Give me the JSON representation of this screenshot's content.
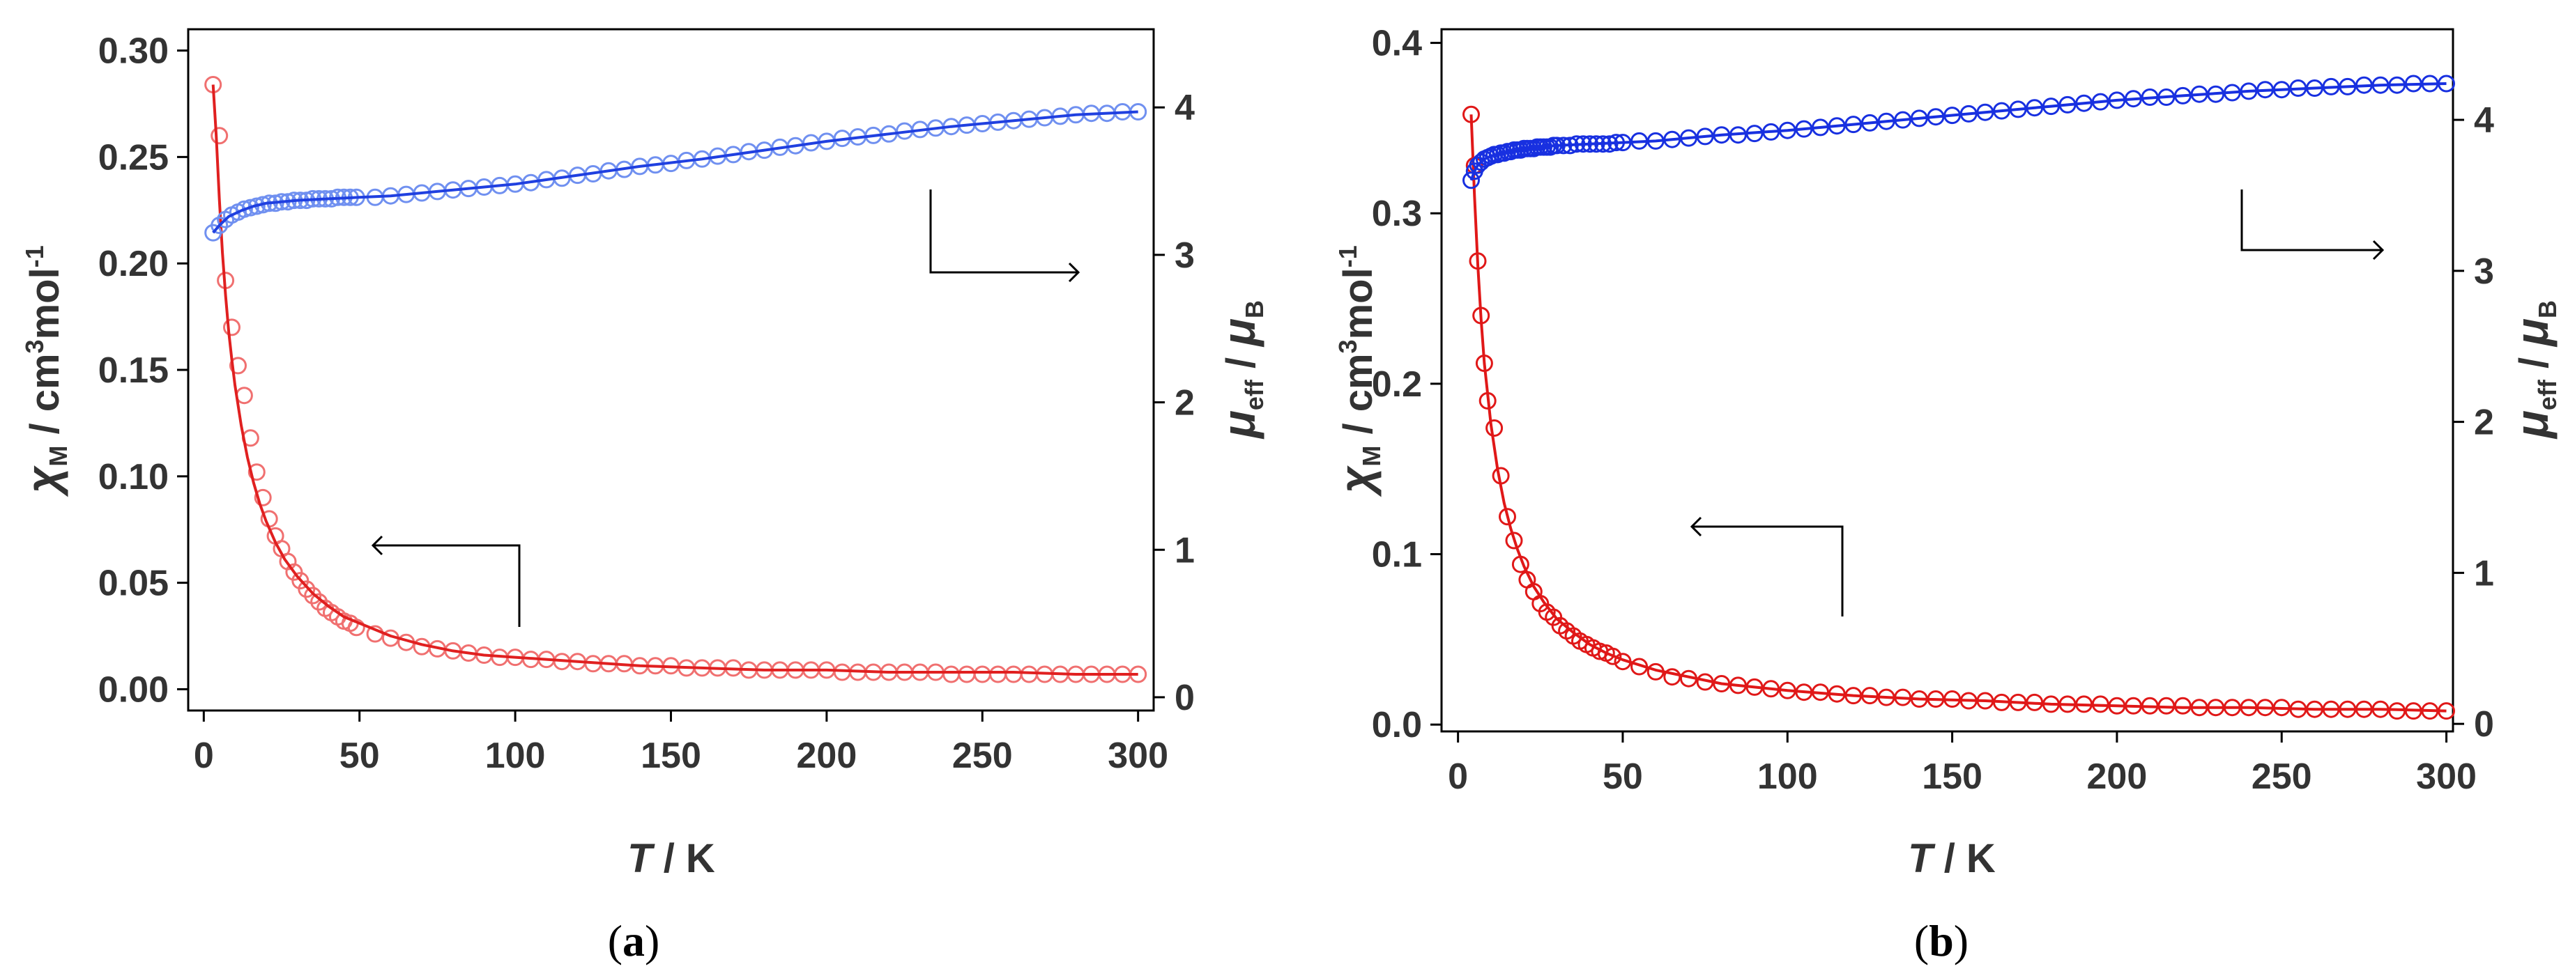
{
  "chart_data": [
    {
      "type": "scatter",
      "panel_label": "a",
      "xlabel": "T / K",
      "xlabel_parts": {
        "var": "T",
        "unit": " / K"
      },
      "ylabel_left": "χM / cm3mol-1",
      "ylabel_left_parts": {
        "sym": "χ",
        "sub": "M",
        "mid": " / cm",
        "sup1": "3",
        "mid2": "mol",
        "sup2": "-1"
      },
      "ylabel_right": "μeff / μB",
      "ylabel_right_parts": {
        "sym": "μ",
        "sub": "eff",
        "mid": " / ",
        "sym2": "μ",
        "sub2": "B"
      },
      "xlim": [
        -5,
        305
      ],
      "ylim_left": [
        -0.01,
        0.31
      ],
      "ylim_right": [
        -0.09,
        4.53
      ],
      "x_ticks": [
        "0",
        "50",
        "100",
        "150",
        "200",
        "250",
        "300"
      ],
      "y_left_ticks": [
        "0.00",
        "0.05",
        "0.10",
        "0.15",
        "0.20",
        "0.25",
        "0.30"
      ],
      "y_right_ticks": [
        "0",
        "1",
        "2",
        "3",
        "4"
      ],
      "annotations": [
        "arrow pointing to left axis (χM curve)",
        "arrow pointing to right axis (μeff curve)"
      ],
      "series": [
        {
          "name": "χM (experimental)",
          "axis": "left",
          "color": "#f07070",
          "marker": "open-circle",
          "x": [
            3,
            5,
            7,
            9,
            11,
            13,
            15,
            17,
            19,
            21,
            23,
            25,
            27,
            29,
            31,
            33,
            35,
            37,
            39,
            41,
            43,
            45,
            47,
            49,
            55,
            60,
            65,
            70,
            75,
            80,
            85,
            90,
            95,
            100,
            105,
            110,
            115,
            120,
            125,
            130,
            135,
            140,
            145,
            150,
            155,
            160,
            165,
            170,
            175,
            180,
            185,
            190,
            195,
            200,
            205,
            210,
            215,
            220,
            225,
            230,
            235,
            240,
            245,
            250,
            255,
            260,
            265,
            270,
            275,
            280,
            285,
            290,
            295,
            300
          ],
          "values": [
            0.284,
            0.26,
            0.192,
            0.17,
            0.152,
            0.138,
            0.118,
            0.102,
            0.09,
            0.08,
            0.072,
            0.066,
            0.06,
            0.055,
            0.051,
            0.047,
            0.044,
            0.041,
            0.038,
            0.036,
            0.034,
            0.032,
            0.031,
            0.029,
            0.026,
            0.024,
            0.022,
            0.02,
            0.019,
            0.018,
            0.017,
            0.016,
            0.015,
            0.015,
            0.014,
            0.014,
            0.013,
            0.013,
            0.012,
            0.012,
            0.012,
            0.011,
            0.011,
            0.011,
            0.01,
            0.01,
            0.01,
            0.01,
            0.009,
            0.009,
            0.009,
            0.009,
            0.009,
            0.009,
            0.008,
            0.008,
            0.008,
            0.008,
            0.008,
            0.008,
            0.008,
            0.007,
            0.007,
            0.007,
            0.007,
            0.007,
            0.007,
            0.007,
            0.007,
            0.007,
            0.007,
            0.007,
            0.007,
            0.007
          ]
        },
        {
          "name": "χM (fit)",
          "axis": "left",
          "color": "#e02020",
          "marker": "line",
          "x": [
            3,
            4,
            5,
            6,
            7,
            8,
            9,
            10,
            12,
            14,
            16,
            18,
            20,
            23,
            26,
            30,
            35,
            40,
            45,
            50,
            60,
            70,
            80,
            90,
            100,
            120,
            140,
            160,
            180,
            200,
            220,
            240,
            260,
            280,
            300
          ],
          "values": [
            0.284,
            0.26,
            0.23,
            0.205,
            0.185,
            0.168,
            0.155,
            0.143,
            0.124,
            0.109,
            0.097,
            0.087,
            0.079,
            0.069,
            0.061,
            0.053,
            0.045,
            0.039,
            0.034,
            0.031,
            0.025,
            0.021,
            0.018,
            0.016,
            0.015,
            0.013,
            0.011,
            0.01,
            0.009,
            0.009,
            0.008,
            0.008,
            0.008,
            0.007,
            0.007
          ]
        },
        {
          "name": "μeff (experimental)",
          "axis": "right",
          "color": "#7090f0",
          "marker": "open-circle",
          "x": [
            3,
            5,
            7,
            9,
            11,
            13,
            15,
            17,
            19,
            21,
            23,
            25,
            27,
            29,
            31,
            33,
            35,
            37,
            39,
            41,
            43,
            45,
            47,
            49,
            55,
            60,
            65,
            70,
            75,
            80,
            85,
            90,
            95,
            100,
            105,
            110,
            115,
            120,
            125,
            130,
            135,
            140,
            145,
            150,
            155,
            160,
            165,
            170,
            175,
            180,
            185,
            190,
            195,
            200,
            205,
            210,
            215,
            220,
            225,
            230,
            235,
            240,
            245,
            250,
            255,
            260,
            265,
            270,
            275,
            280,
            285,
            290,
            295,
            300
          ],
          "values": [
            3.15,
            3.2,
            3.24,
            3.27,
            3.29,
            3.31,
            3.32,
            3.33,
            3.34,
            3.35,
            3.35,
            3.36,
            3.36,
            3.37,
            3.37,
            3.37,
            3.38,
            3.38,
            3.38,
            3.38,
            3.39,
            3.39,
            3.39,
            3.39,
            3.39,
            3.4,
            3.41,
            3.42,
            3.43,
            3.44,
            3.45,
            3.46,
            3.47,
            3.48,
            3.49,
            3.51,
            3.52,
            3.54,
            3.55,
            3.57,
            3.58,
            3.6,
            3.61,
            3.62,
            3.64,
            3.65,
            3.67,
            3.68,
            3.7,
            3.71,
            3.73,
            3.74,
            3.76,
            3.77,
            3.79,
            3.8,
            3.81,
            3.82,
            3.84,
            3.85,
            3.86,
            3.87,
            3.88,
            3.89,
            3.9,
            3.91,
            3.92,
            3.93,
            3.94,
            3.95,
            3.96,
            3.96,
            3.97,
            3.97
          ]
        },
        {
          "name": "μeff (fit)",
          "axis": "right",
          "color": "#2040e0",
          "marker": "line",
          "x": [
            3,
            5,
            8,
            12,
            16,
            20,
            25,
            30,
            40,
            50,
            60,
            80,
            100,
            120,
            140,
            160,
            180,
            200,
            220,
            240,
            260,
            280,
            300
          ],
          "values": [
            3.15,
            3.2,
            3.26,
            3.3,
            3.33,
            3.35,
            3.36,
            3.37,
            3.38,
            3.39,
            3.4,
            3.44,
            3.48,
            3.54,
            3.6,
            3.65,
            3.71,
            3.77,
            3.82,
            3.87,
            3.91,
            3.95,
            3.97
          ]
        }
      ]
    },
    {
      "type": "scatter",
      "panel_label": "b",
      "xlabel": "T / K",
      "xlabel_parts": {
        "var": "T",
        "unit": " / K"
      },
      "ylabel_left": "χM / cm3mol-1",
      "ylabel_left_parts": {
        "sym": "χ",
        "sub": "M",
        "mid": " / cm",
        "sup1": "3",
        "mid2": "mol",
        "sup2": "-1"
      },
      "ylabel_right": "μeff / μB",
      "ylabel_right_parts": {
        "sym": "μ",
        "sub": "eff",
        "mid": " / ",
        "sym2": "μ",
        "sub2": "B"
      },
      "xlim": [
        -5,
        302
      ],
      "ylim_left": [
        -0.004,
        0.408
      ],
      "ylim_right": [
        -0.05,
        4.6
      ],
      "x_ticks": [
        "0",
        "50",
        "100",
        "150",
        "200",
        "250",
        "300"
      ],
      "y_left_ticks": [
        "0.0",
        "0.1",
        "0.2",
        "0.3",
        "0.4"
      ],
      "y_right_ticks": [
        "0",
        "1",
        "2",
        "3",
        "4"
      ],
      "annotations": [
        "arrow pointing to left axis (χM curve)",
        "arrow pointing to right axis (μeff curve)"
      ],
      "series": [
        {
          "name": "χM (experimental)",
          "axis": "left",
          "color": "#e01818",
          "marker": "open-circle",
          "x": [
            4,
            5,
            6,
            7,
            8,
            9,
            11,
            13,
            15,
            17,
            19,
            21,
            23,
            25,
            27,
            29,
            31,
            33,
            35,
            37,
            39,
            41,
            43,
            45,
            47,
            50,
            55,
            60,
            65,
            70,
            75,
            80,
            85,
            90,
            95,
            100,
            105,
            110,
            115,
            120,
            125,
            130,
            135,
            140,
            145,
            150,
            155,
            160,
            165,
            170,
            175,
            180,
            185,
            190,
            195,
            200,
            205,
            210,
            215,
            220,
            225,
            230,
            235,
            240,
            245,
            250,
            255,
            260,
            265,
            270,
            275,
            280,
            285,
            290,
            295,
            300
          ],
          "values": [
            0.358,
            0.328,
            0.272,
            0.24,
            0.212,
            0.19,
            0.174,
            0.146,
            0.122,
            0.108,
            0.094,
            0.085,
            0.078,
            0.071,
            0.066,
            0.063,
            0.058,
            0.055,
            0.052,
            0.049,
            0.047,
            0.045,
            0.043,
            0.042,
            0.04,
            0.037,
            0.034,
            0.031,
            0.028,
            0.027,
            0.025,
            0.024,
            0.023,
            0.022,
            0.021,
            0.02,
            0.019,
            0.019,
            0.018,
            0.017,
            0.017,
            0.016,
            0.016,
            0.015,
            0.015,
            0.015,
            0.014,
            0.014,
            0.013,
            0.013,
            0.013,
            0.012,
            0.012,
            0.012,
            0.012,
            0.011,
            0.011,
            0.011,
            0.011,
            0.011,
            0.01,
            0.01,
            0.01,
            0.01,
            0.01,
            0.01,
            0.009,
            0.009,
            0.009,
            0.009,
            0.009,
            0.009,
            0.008,
            0.008,
            0.008,
            0.008
          ]
        },
        {
          "name": "χM (fit)",
          "axis": "left",
          "color": "#e01818",
          "marker": "line",
          "x": [
            4,
            5,
            6,
            7,
            8,
            10,
            12,
            14,
            16,
            18,
            20,
            23,
            26,
            30,
            35,
            40,
            45,
            50,
            60,
            70,
            80,
            90,
            100,
            120,
            140,
            160,
            180,
            200,
            220,
            240,
            260,
            280,
            300
          ],
          "values": [
            0.358,
            0.31,
            0.27,
            0.238,
            0.212,
            0.176,
            0.15,
            0.13,
            0.115,
            0.103,
            0.093,
            0.081,
            0.072,
            0.062,
            0.054,
            0.047,
            0.042,
            0.038,
            0.032,
            0.028,
            0.024,
            0.022,
            0.02,
            0.017,
            0.015,
            0.014,
            0.012,
            0.011,
            0.01,
            0.01,
            0.009,
            0.009,
            0.008
          ]
        },
        {
          "name": "μeff (experimental)",
          "axis": "right",
          "color": "#1830e0",
          "marker": "open-circle",
          "x": [
            4,
            5,
            6,
            7,
            8,
            9,
            10,
            11,
            12,
            13,
            14,
            15,
            16,
            17,
            18,
            19,
            20,
            21,
            22,
            23,
            24,
            25,
            26,
            27,
            28,
            29,
            30,
            32,
            34,
            36,
            38,
            40,
            42,
            44,
            46,
            48,
            50,
            55,
            60,
            65,
            70,
            75,
            80,
            85,
            90,
            95,
            100,
            105,
            110,
            115,
            120,
            125,
            130,
            135,
            140,
            145,
            150,
            155,
            160,
            165,
            170,
            175,
            180,
            185,
            190,
            195,
            200,
            205,
            210,
            215,
            220,
            225,
            230,
            235,
            240,
            245,
            250,
            255,
            260,
            265,
            270,
            275,
            280,
            285,
            290,
            295,
            300
          ],
          "values": [
            3.6,
            3.66,
            3.7,
            3.72,
            3.74,
            3.75,
            3.76,
            3.77,
            3.77,
            3.78,
            3.78,
            3.79,
            3.79,
            3.8,
            3.8,
            3.8,
            3.81,
            3.81,
            3.81,
            3.81,
            3.82,
            3.82,
            3.82,
            3.82,
            3.82,
            3.83,
            3.83,
            3.83,
            3.83,
            3.84,
            3.84,
            3.84,
            3.84,
            3.84,
            3.84,
            3.85,
            3.85,
            3.86,
            3.86,
            3.87,
            3.88,
            3.89,
            3.9,
            3.9,
            3.91,
            3.92,
            3.93,
            3.94,
            3.95,
            3.96,
            3.97,
            3.98,
            3.99,
            4.0,
            4.01,
            4.02,
            4.03,
            4.04,
            4.05,
            4.06,
            4.07,
            4.08,
            4.09,
            4.1,
            4.11,
            4.12,
            4.13,
            4.14,
            4.15,
            4.15,
            4.16,
            4.17,
            4.17,
            4.18,
            4.19,
            4.2,
            4.2,
            4.21,
            4.21,
            4.22,
            4.22,
            4.23,
            4.23,
            4.23,
            4.24,
            4.24,
            4.24
          ]
        },
        {
          "name": "μeff (fit)",
          "axis": "right",
          "color": "#1830e0",
          "marker": "line",
          "x": [
            4,
            5,
            6,
            8,
            10,
            14,
            18,
            24,
            30,
            40,
            50,
            60,
            80,
            100,
            120,
            140,
            160,
            180,
            200,
            220,
            240,
            260,
            280,
            300
          ],
          "values": [
            3.6,
            3.66,
            3.7,
            3.74,
            3.76,
            3.78,
            3.8,
            3.82,
            3.83,
            3.84,
            3.85,
            3.86,
            3.9,
            3.93,
            3.97,
            4.01,
            4.05,
            4.09,
            4.13,
            4.16,
            4.19,
            4.21,
            4.23,
            4.24
          ]
        }
      ]
    }
  ]
}
